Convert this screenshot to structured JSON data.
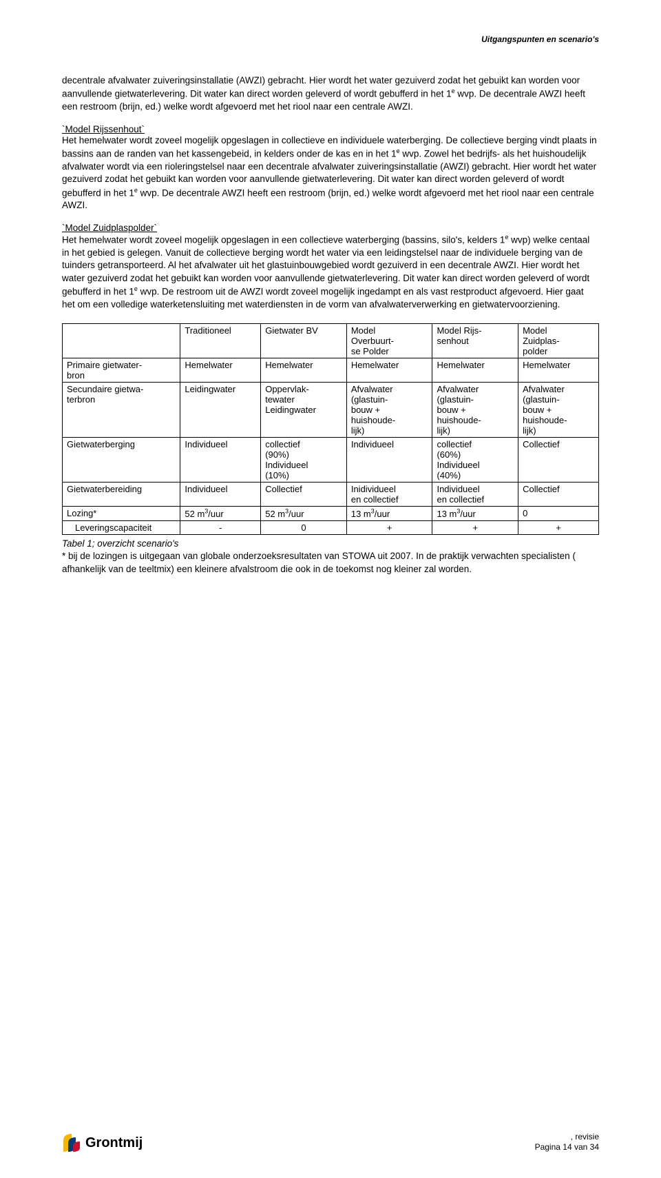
{
  "header": {
    "section_label": "Uitgangspunten en scenario's"
  },
  "para1": "decentrale afvalwater zuiveringsinstallatie (AWZI) gebracht. Hier wordt het water gezuiverd zodat het gebuikt kan worden voor aanvullende gietwaterlevering. Dit water kan direct worden geleverd of wordt gebufferd in het 1",
  "para1_sup": "e",
  "para1_tail": " wvp. De decentrale AWZI heeft een restroom (brijn, ed.) welke wordt afgevoerd met het riool naar een centrale AWZI.",
  "sec2_title": "`Model Rijssenhout`",
  "sec2_body_a": "Het hemelwater wordt zoveel mogelijk opgeslagen in collectieve en individuele waterberging. De collectieve berging vindt plaats in bassins aan de randen van het kassengebeid, in kelders onder de kas en in het 1",
  "sec2_sup1": "e",
  "sec2_body_b": " wvp. Zowel het bedrijfs- als het huishoudelijk afvalwater wordt via een rioleringstelsel naar een decentrale afvalwater zuiveringsinstallatie (AWZI) gebracht. Hier wordt het water gezuiverd zodat het gebuikt kan worden voor aanvullende gietwaterlevering. Dit water kan direct worden geleverd of wordt gebufferd in het 1",
  "sec2_sup2": "e",
  "sec2_body_c": " wvp. De decentrale AWZI heeft een restroom (brijn, ed.) welke wordt afgevoerd met het riool naar een centrale AWZI.",
  "sec3_title": "`Model Zuidplaspolder`",
  "sec3_body_a": "Het hemelwater wordt zoveel mogelijk opgeslagen in een collectieve waterberging (bassins, silo's, kelders 1",
  "sec3_sup1": "e",
  "sec3_body_b": " wvp) welke centaal in het gebied is gelegen. Vanuit de collectieve berging wordt het water via een leidingstelsel naar de individuele berging van de tuinders getransporteerd. Al het afvalwater uit het glastuinbouwgebied wordt gezuiverd in een decentrale AWZI. Hier wordt het water gezuiverd zodat het gebuikt kan worden voor aanvullende gietwaterlevering. Dit water kan direct worden geleverd of wordt gebufferd in het 1",
  "sec3_sup2": "e",
  "sec3_body_c": " wvp. De restroom uit de AWZI wordt zoveel mogelijk ingedampt en als vast restproduct afgevoerd. Hier gaat het om een volledige waterketensluiting met waterdiensten in de vorm van afvalwaterverwerking en gietwatervoorziening.",
  "table": {
    "columns": [
      "",
      "Traditioneel",
      "Gietwater BV",
      "Model Overbuurtse Polder",
      "Model Rijssenhout",
      "Model Zuidplaspolder"
    ],
    "rows": [
      [
        "Primaire gietwaterbron",
        "Hemelwater",
        "Hemelwater",
        "Hemelwater",
        "Hemelwater",
        "Hemelwater"
      ],
      [
        "Secundaire gietwaterbron",
        "Leidingwater",
        "Oppervlaktewater Leidingwater",
        "Afvalwater (glastuinbouw + huishoudelijk)",
        "Afvalwater (glastuinbouw + huishoudelijk)",
        "Afvalwater (glastuinbouw + huishoudelijk)"
      ],
      [
        "Gietwaterberging",
        "Individueel",
        "collectief (90%) Individueel (10%)",
        "Individueel",
        "collectief (60%) Individueel (40%)",
        "Collectief"
      ],
      [
        "Gietwaterbereiding",
        "Individueel",
        "Collectief",
        "Inidividueel en collectief",
        "Individueel en collectief",
        "Collectief"
      ],
      [
        "Lozing*",
        "52 m³/uur",
        "52 m³/uur",
        "13 m³/uur",
        "13 m³/uur",
        "0"
      ],
      [
        "Leveringscapaciteit",
        "-",
        "0",
        "+",
        "+",
        "+"
      ]
    ],
    "col_widths": [
      "22%",
      "15%",
      "16%",
      "16%",
      "16%",
      "15%"
    ]
  },
  "table_caption": "Tabel 1; overzicht scenario's",
  "footnote": "* bij de lozingen is uitgegaan van globale onderzoeksresultaten van STOWA uit 2007. In de praktijk verwachten specialisten ( afhankelijk van de teeltmix) een kleinere afvalstroom die ook in de toekomst nog kleiner zal worden.",
  "footer": {
    "revisie": ", revisie",
    "pagina": "Pagina 14 van 34",
    "logo_text": "Grontmij"
  },
  "colors": {
    "text": "#000000",
    "bg": "#ffffff",
    "logo_yellow": "#f5b800",
    "logo_blue": "#003d7a",
    "logo_red": "#c8102e"
  }
}
